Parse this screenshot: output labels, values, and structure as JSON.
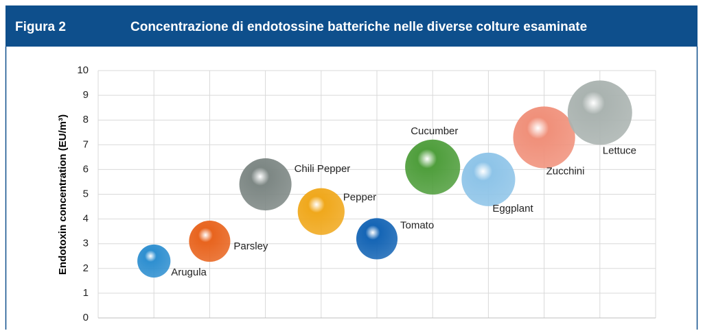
{
  "header": {
    "figure": "Figura 2",
    "title": "Concentrazione di endotossine batteriche nelle diverse colture esaminate"
  },
  "chart_data": {
    "type": "bubble",
    "ylabel": "Endotoxin concentration (EU/m³)",
    "categories": [
      "Arugula",
      "Parsley",
      "Chili Pepper",
      "Pepper",
      "Tomato",
      "Cucumber",
      "Eggplant",
      "Zucchini",
      "Lettuce"
    ],
    "x": [
      1,
      2,
      3,
      4,
      5,
      6,
      7,
      8,
      9
    ],
    "values": [
      2.3,
      3.1,
      5.4,
      4.3,
      3.2,
      6.1,
      5.6,
      7.3,
      8.3
    ],
    "sizes": [
      5.8,
      9,
      14.4,
      11.6,
      9,
      16,
      15.2,
      20.3,
      22
    ],
    "colors": [
      "#2e8fd0",
      "#e8641e",
      "#7d8784",
      "#f0a81c",
      "#1565b5",
      "#4f9e3c",
      "#8ec4e8",
      "#f0907a",
      "#aab3b0"
    ],
    "xlim": [
      0,
      10
    ],
    "xticks": [
      0,
      1,
      2,
      3,
      4,
      5,
      6,
      7,
      8,
      9,
      10
    ],
    "ylim": [
      0,
      10
    ],
    "yticks": [
      0,
      1,
      2,
      3,
      4,
      5,
      6,
      7,
      8,
      9,
      10
    ],
    "grid": true
  }
}
